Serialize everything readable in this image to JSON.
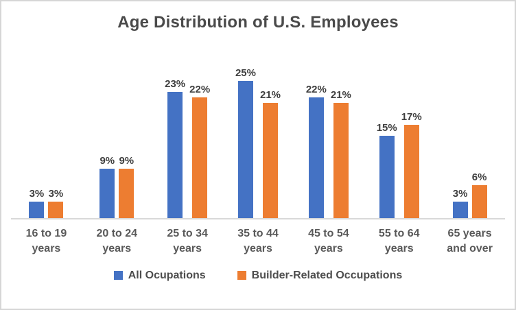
{
  "chart_data": {
    "type": "bar",
    "title": "Age Distribution of U.S. Employees",
    "categories": [
      "16 to 19 years",
      "20 to 24 years",
      "25 to 34 years",
      "35 to 44 years",
      "45 to 54 years",
      "55 to 64 years",
      "65 years and over"
    ],
    "series": [
      {
        "name": "All Ocupations",
        "color": "#4472C4",
        "values": [
          3,
          9,
          23,
          25,
          22,
          15,
          3
        ]
      },
      {
        "name": "Builder-Related Occupations",
        "color": "#ED7D31",
        "values": [
          3,
          9,
          22,
          21,
          21,
          17,
          6
        ]
      }
    ],
    "value_suffix": "%",
    "data_labels": true,
    "legend_position": "bottom",
    "grid": false,
    "y_axis_visible": false,
    "ylim": [
      0,
      27
    ],
    "axis_line_color": "#D9D9D9",
    "text_color": "#595959"
  }
}
